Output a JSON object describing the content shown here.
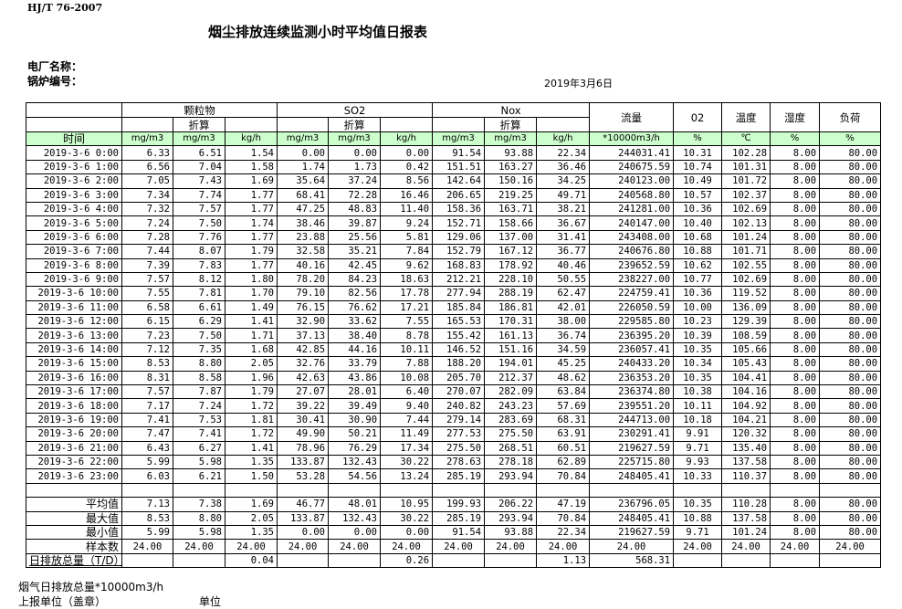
{
  "standard": "HJ/T  76-2007",
  "title": "烟尘排放连续监测小时平均值日报表",
  "plant_label": "电厂名称：",
  "boiler_label": "锅炉编号：",
  "report_date": "2019年3月6日",
  "header": {
    "groups": [
      "颗粒物",
      "SO2",
      "Nox"
    ],
    "converted": "折算",
    "flow": "流量",
    "o2": "02",
    "temp": "温度",
    "humidity": "湿度",
    "load": "负荷",
    "time": "时间",
    "units": [
      "mg/m3",
      "mg/m3",
      "kg/h",
      "mg/m3",
      "mg/m3",
      "kg/h",
      "mg/m3",
      "mg/m3",
      "kg/h",
      "*10000m3/h",
      "%",
      "℃",
      "%",
      "%"
    ]
  },
  "header_color": "#ccffcc",
  "rows": [
    [
      "2019-3-6 0:00",
      "6.33",
      "6.51",
      "1.54",
      "0.00",
      "0.00",
      "0.00",
      "91.54",
      "93.88",
      "22.34",
      "244031.41",
      "10.31",
      "102.28",
      "8.00",
      "80.00"
    ],
    [
      "2019-3-6 1:00",
      "6.56",
      "7.04",
      "1.58",
      "1.74",
      "1.73",
      "0.42",
      "151.51",
      "163.27",
      "36.46",
      "240675.59",
      "10.74",
      "101.31",
      "8.00",
      "80.00"
    ],
    [
      "2019-3-6 2:00",
      "7.05",
      "7.43",
      "1.69",
      "35.64",
      "37.24",
      "8.56",
      "142.64",
      "150.16",
      "34.25",
      "240123.00",
      "10.49",
      "101.72",
      "8.00",
      "80.00"
    ],
    [
      "2019-3-6 3:00",
      "7.34",
      "7.74",
      "1.77",
      "68.41",
      "72.28",
      "16.46",
      "206.65",
      "219.25",
      "49.71",
      "240568.80",
      "10.57",
      "102.37",
      "8.00",
      "80.00"
    ],
    [
      "2019-3-6 4:00",
      "7.32",
      "7.57",
      "1.77",
      "47.25",
      "48.83",
      "11.40",
      "158.36",
      "163.71",
      "38.21",
      "241281.00",
      "10.36",
      "102.69",
      "8.00",
      "80.00"
    ],
    [
      "2019-3-6 5:00",
      "7.24",
      "7.50",
      "1.74",
      "38.46",
      "39.87",
      "9.24",
      "152.71",
      "158.66",
      "36.67",
      "240147.00",
      "10.40",
      "102.13",
      "8.00",
      "80.00"
    ],
    [
      "2019-3-6 6:00",
      "7.28",
      "7.76",
      "1.77",
      "23.88",
      "25.56",
      "5.81",
      "129.06",
      "137.00",
      "31.41",
      "243408.00",
      "10.68",
      "101.24",
      "8.00",
      "80.00"
    ],
    [
      "2019-3-6 7:00",
      "7.44",
      "8.07",
      "1.79",
      "32.58",
      "35.21",
      "7.84",
      "152.79",
      "167.12",
      "36.77",
      "240676.80",
      "10.88",
      "101.71",
      "8.00",
      "80.00"
    ],
    [
      "2019-3-6 8:00",
      "7.39",
      "7.83",
      "1.77",
      "40.16",
      "42.45",
      "9.62",
      "168.83",
      "178.92",
      "40.46",
      "239652.59",
      "10.62",
      "102.55",
      "8.00",
      "80.00"
    ],
    [
      "2019-3-6 9:00",
      "7.57",
      "8.12",
      "1.80",
      "78.20",
      "84.23",
      "18.63",
      "212.21",
      "228.10",
      "50.55",
      "238227.00",
      "10.77",
      "102.69",
      "8.00",
      "80.00"
    ],
    [
      "2019-3-6 10:00",
      "7.55",
      "7.81",
      "1.70",
      "79.10",
      "82.56",
      "17.78",
      "277.94",
      "288.19",
      "62.47",
      "224759.41",
      "10.36",
      "119.52",
      "8.00",
      "80.00"
    ],
    [
      "2019-3-6 11:00",
      "6.58",
      "6.61",
      "1.49",
      "76.15",
      "76.62",
      "17.21",
      "185.84",
      "186.81",
      "42.01",
      "226050.59",
      "10.00",
      "136.09",
      "8.00",
      "80.00"
    ],
    [
      "2019-3-6 12:00",
      "6.15",
      "6.29",
      "1.41",
      "32.90",
      "33.62",
      "7.55",
      "165.53",
      "170.31",
      "38.00",
      "229585.80",
      "10.23",
      "129.39",
      "8.00",
      "80.00"
    ],
    [
      "2019-3-6 13:00",
      "7.23",
      "7.50",
      "1.71",
      "37.13",
      "38.40",
      "8.78",
      "155.42",
      "161.13",
      "36.74",
      "236395.20",
      "10.39",
      "108.59",
      "8.00",
      "80.00"
    ],
    [
      "2019-3-6 14:00",
      "7.12",
      "7.35",
      "1.68",
      "42.85",
      "44.16",
      "10.11",
      "146.52",
      "151.16",
      "34.59",
      "236057.41",
      "10.35",
      "105.66",
      "8.00",
      "80.00"
    ],
    [
      "2019-3-6 15:00",
      "8.53",
      "8.80",
      "2.05",
      "32.76",
      "33.79",
      "7.88",
      "188.20",
      "194.01",
      "45.25",
      "240433.20",
      "10.34",
      "105.43",
      "8.00",
      "80.00"
    ],
    [
      "2019-3-6 16:00",
      "8.31",
      "8.58",
      "1.96",
      "42.63",
      "43.86",
      "10.08",
      "205.70",
      "212.37",
      "48.62",
      "236353.20",
      "10.35",
      "104.41",
      "8.00",
      "80.00"
    ],
    [
      "2019-3-6 17:00",
      "7.57",
      "7.87",
      "1.79",
      "27.07",
      "28.01",
      "6.40",
      "270.07",
      "282.09",
      "63.84",
      "236374.80",
      "10.38",
      "104.16",
      "8.00",
      "80.00"
    ],
    [
      "2019-3-6 18:00",
      "7.17",
      "7.24",
      "1.72",
      "39.22",
      "39.49",
      "9.40",
      "240.82",
      "243.23",
      "57.69",
      "239551.20",
      "10.11",
      "104.92",
      "8.00",
      "80.00"
    ],
    [
      "2019-3-6 19:00",
      "7.41",
      "7.53",
      "1.81",
      "30.41",
      "30.90",
      "7.44",
      "279.14",
      "283.69",
      "68.31",
      "244713.00",
      "10.18",
      "104.21",
      "8.00",
      "80.00"
    ],
    [
      "2019-3-6 20:00",
      "7.47",
      "7.41",
      "1.72",
      "49.90",
      "50.21",
      "11.49",
      "277.53",
      "275.50",
      "63.91",
      "230291.41",
      "9.91",
      "120.32",
      "8.00",
      "80.00"
    ],
    [
      "2019-3-6 21:00",
      "6.43",
      "6.27",
      "1.41",
      "78.96",
      "76.29",
      "17.34",
      "275.50",
      "268.51",
      "60.51",
      "219627.59",
      "9.71",
      "135.40",
      "8.00",
      "80.00"
    ],
    [
      "2019-3-6 22:00",
      "5.99",
      "5.98",
      "1.35",
      "133.87",
      "132.43",
      "30.22",
      "278.63",
      "278.18",
      "62.89",
      "225715.80",
      "9.93",
      "137.58",
      "8.00",
      "80.00"
    ],
    [
      "2019-3-6 23:00",
      "6.03",
      "6.21",
      "1.50",
      "53.28",
      "54.56",
      "13.24",
      "285.19",
      "293.94",
      "70.84",
      "248405.41",
      "10.33",
      "110.37",
      "8.00",
      "80.00"
    ]
  ],
  "summary": [
    [
      "平均值",
      "7.13",
      "7.38",
      "1.69",
      "46.77",
      "48.01",
      "10.95",
      "199.93",
      "206.22",
      "47.19",
      "236796.05",
      "10.35",
      "110.28",
      "8.00",
      "80.00"
    ],
    [
      "最大值",
      "8.53",
      "8.80",
      "2.05",
      "133.87",
      "132.43",
      "30.22",
      "285.19",
      "293.94",
      "70.84",
      "248405.41",
      "10.88",
      "137.58",
      "8.00",
      "80.00"
    ],
    [
      "最小值",
      "5.99",
      "5.98",
      "1.35",
      "0.00",
      "0.00",
      "0.00",
      "91.54",
      "93.88",
      "22.34",
      "219627.59",
      "9.71",
      "101.24",
      "8.00",
      "80.00"
    ],
    [
      "样本数",
      "24.00",
      "24.00",
      "24.00",
      "24.00",
      "24.00",
      "24.00",
      "24.00",
      "24.00",
      "24.00",
      "24.00",
      "24.00",
      "24.00",
      "24.00",
      "24.00"
    ],
    [
      "日排放总量（T/D）",
      "",
      "",
      "0.04",
      "",
      "",
      "0.26",
      "",
      "",
      "1.13",
      "568.31",
      "",
      "",
      "",
      ""
    ]
  ],
  "footer": {
    "flue_gas_total": "烟气日排放总量*10000m3/h",
    "reporting_unit": "上报单位（盖章）",
    "unit": "单位"
  }
}
